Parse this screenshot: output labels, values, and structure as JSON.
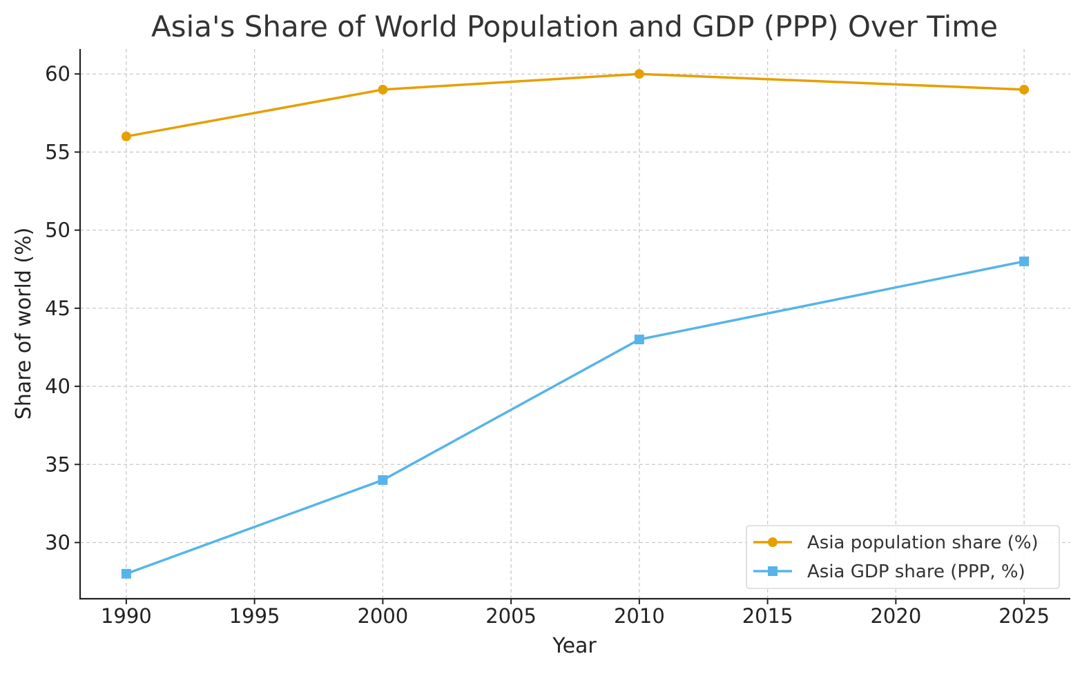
{
  "chart_data": {
    "type": "line",
    "title": "Asia's Share of World Population and GDP (PPP) Over Time",
    "xlabel": "Year",
    "ylabel": "Share of world (%)",
    "xlim": [
      1988.2,
      2026.8
    ],
    "ylim": [
      26.4,
      61.6
    ],
    "xticks": [
      1990,
      1995,
      2000,
      2005,
      2010,
      2015,
      2020,
      2025
    ],
    "yticks": [
      30,
      35,
      40,
      45,
      50,
      55,
      60
    ],
    "grid": true,
    "legend_position": "lower-right",
    "series": [
      {
        "name": "Asia population share (%)",
        "color": "#E69F00",
        "marker": "circle",
        "x": [
          1990,
          2000,
          2010,
          2025
        ],
        "y": [
          56,
          59,
          60,
          59
        ]
      },
      {
        "name": "Asia GDP share (PPP, %)",
        "color": "#56B4E9",
        "marker": "square",
        "x": [
          1990,
          2000,
          2010,
          2025
        ],
        "y": [
          28,
          34,
          43,
          48
        ]
      }
    ]
  }
}
